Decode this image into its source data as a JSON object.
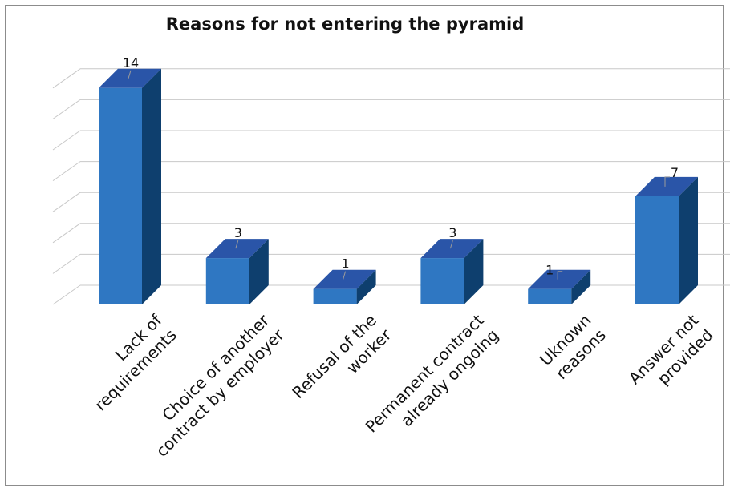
{
  "chart_data": {
    "type": "bar",
    "title": "Reasons for not entering the pyramid",
    "categories": [
      [
        "Lack of",
        "requirements"
      ],
      [
        "Choice of another",
        "contract by employer"
      ],
      [
        "Refusal of the",
        "worker"
      ],
      [
        "Permanent contract",
        "already ongoing"
      ],
      [
        "Uknown",
        "reasons"
      ],
      [
        "Answer not",
        "provided"
      ]
    ],
    "values": [
      14,
      3,
      1,
      3,
      1,
      7
    ],
    "data_labels": [
      "14",
      "3",
      "1",
      "3",
      "1",
      "7"
    ],
    "ylim": [
      0,
      14
    ],
    "grid": true,
    "legend": "none",
    "colors": {
      "front": "#2f77c2",
      "side": "#0e3f6e",
      "top": "#2a55a8",
      "grid": "#c8c8c8"
    }
  }
}
